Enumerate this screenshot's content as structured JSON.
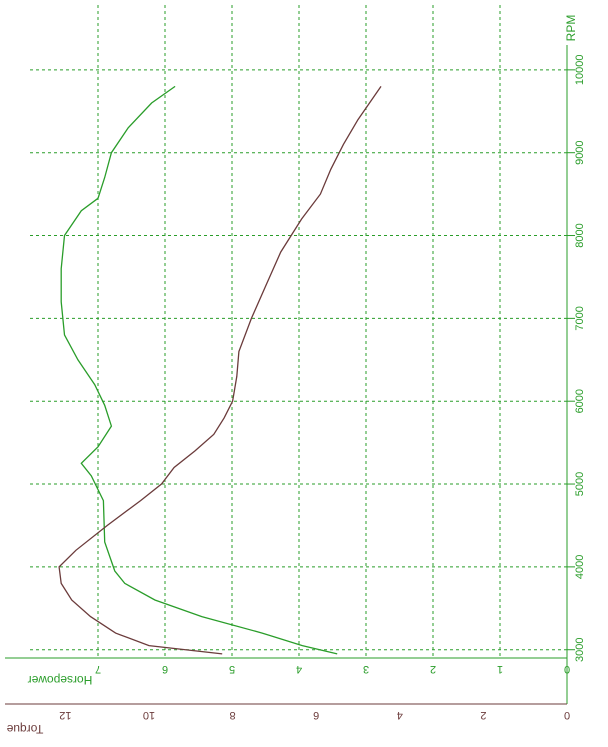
{
  "chart_data": {
    "type": "line",
    "xlabel": "RPM",
    "ylabel_left": "Horsepower",
    "ylabel_right": "Torque",
    "xlim": [
      2900,
      10300
    ],
    "hp_lim": [
      0,
      7.9
    ],
    "tq_lim": [
      0,
      12.6
    ],
    "rpm_ticks": [
      "3000",
      "4000",
      "5000",
      "6000",
      "7000",
      "8000",
      "9000",
      "10000"
    ],
    "hp_ticks": [
      "0",
      "1",
      "2",
      "3",
      "4",
      "5",
      "6",
      "7"
    ],
    "tq_ticks": [
      "0",
      "2",
      "4",
      "6",
      "8",
      "10",
      "12"
    ],
    "grid": true,
    "colors": {
      "horsepower": "#2a9d2a",
      "torque": "#6b3b3b",
      "axis": "#2a9d2a",
      "grid": "#2a9d2a"
    },
    "series": [
      {
        "name": "Horsepower",
        "axis": "hp",
        "x": [
          2950,
          3050,
          3200,
          3400,
          3600,
          3800,
          3950,
          4300,
          4800,
          5100,
          5250,
          5450,
          5700,
          5950,
          6200,
          6500,
          6800,
          7200,
          7600,
          8000,
          8300,
          8450,
          8700,
          9000,
          9300,
          9600,
          9800
        ],
        "values": [
          3.43,
          3.95,
          4.55,
          5.45,
          6.15,
          6.6,
          6.75,
          6.9,
          6.92,
          7.1,
          7.25,
          7.0,
          6.8,
          6.9,
          7.05,
          7.3,
          7.5,
          7.55,
          7.55,
          7.5,
          7.25,
          7.0,
          6.9,
          6.8,
          6.55,
          6.2,
          5.85
        ]
      },
      {
        "name": "Torque",
        "axis": "tq",
        "x": [
          2950,
          3050,
          3200,
          3400,
          3600,
          3800,
          4000,
          4200,
          4500,
          4800,
          5000,
          5200,
          5400,
          5600,
          5800,
          6000,
          6300,
          6600,
          7000,
          7400,
          7800,
          8200,
          8500,
          8800,
          9100,
          9400,
          9800
        ],
        "values": [
          8.25,
          10.0,
          10.8,
          11.4,
          11.85,
          12.1,
          12.15,
          11.75,
          11.0,
          10.2,
          9.7,
          9.4,
          8.9,
          8.45,
          8.2,
          8.0,
          7.9,
          7.85,
          7.55,
          7.2,
          6.85,
          6.35,
          5.9,
          5.65,
          5.35,
          5.0,
          4.45
        ]
      }
    ]
  }
}
